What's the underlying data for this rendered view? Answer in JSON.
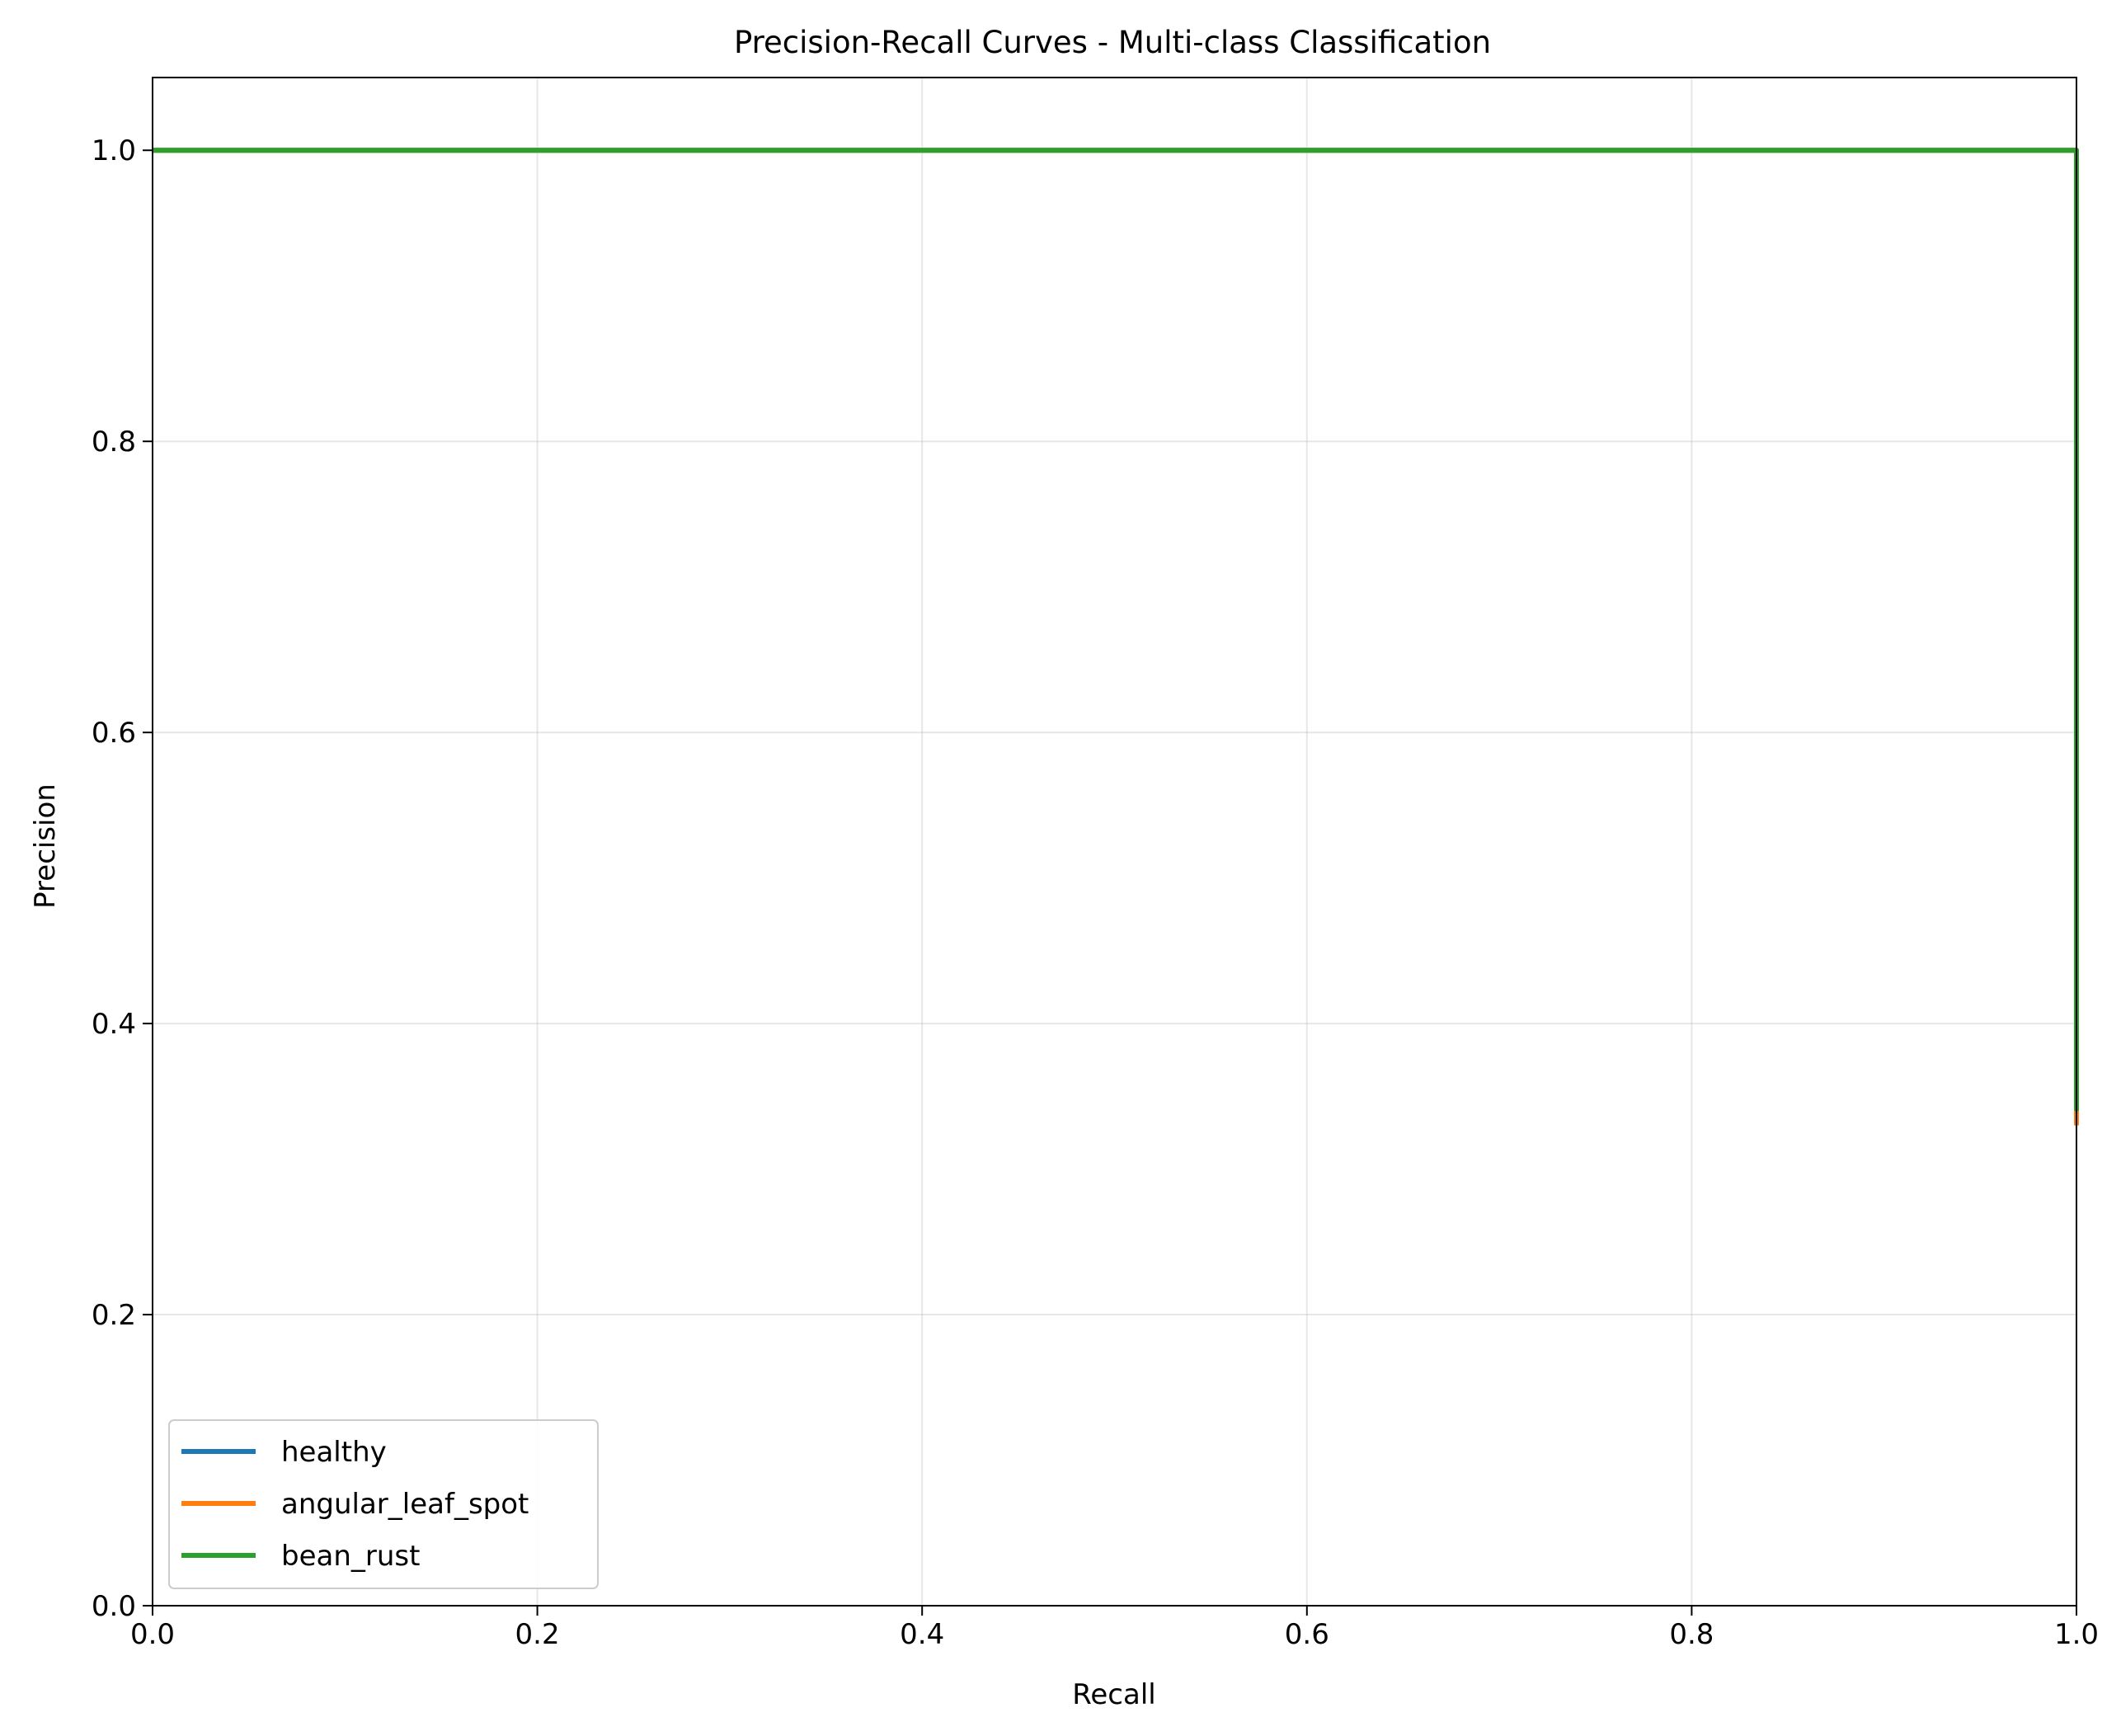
{
  "chart_data": {
    "type": "line",
    "title": "Precision-Recall Curves - Multi-class Classification",
    "xlabel": "Recall",
    "ylabel": "Precision",
    "xlim": [
      0.0,
      1.0
    ],
    "ylim": [
      0.0,
      1.05
    ],
    "x_ticks": [
      0.0,
      0.2,
      0.4,
      0.6,
      0.8,
      1.0
    ],
    "x_tick_labels": [
      "0.0",
      "0.2",
      "0.4",
      "0.6",
      "0.8",
      "1.0"
    ],
    "y_ticks": [
      0.0,
      0.2,
      0.4,
      0.6,
      0.8,
      1.0
    ],
    "y_tick_labels": [
      "0.0",
      "0.2",
      "0.4",
      "0.6",
      "0.8",
      "1.0"
    ],
    "grid": true,
    "legend_position": "lower-left",
    "series": [
      {
        "name": "healthy",
        "color": "#1f77b4",
        "x": [
          0.0,
          1.0,
          1.0
        ],
        "y": [
          1.0,
          1.0,
          0.34
        ]
      },
      {
        "name": "angular_leaf_spot",
        "color": "#ff7f0e",
        "x": [
          0.0,
          1.0,
          1.0
        ],
        "y": [
          1.0,
          1.0,
          0.33
        ]
      },
      {
        "name": "bean_rust",
        "color": "#2ca02c",
        "x": [
          0.0,
          1.0,
          1.0
        ],
        "y": [
          1.0,
          1.0,
          0.34
        ]
      }
    ]
  }
}
